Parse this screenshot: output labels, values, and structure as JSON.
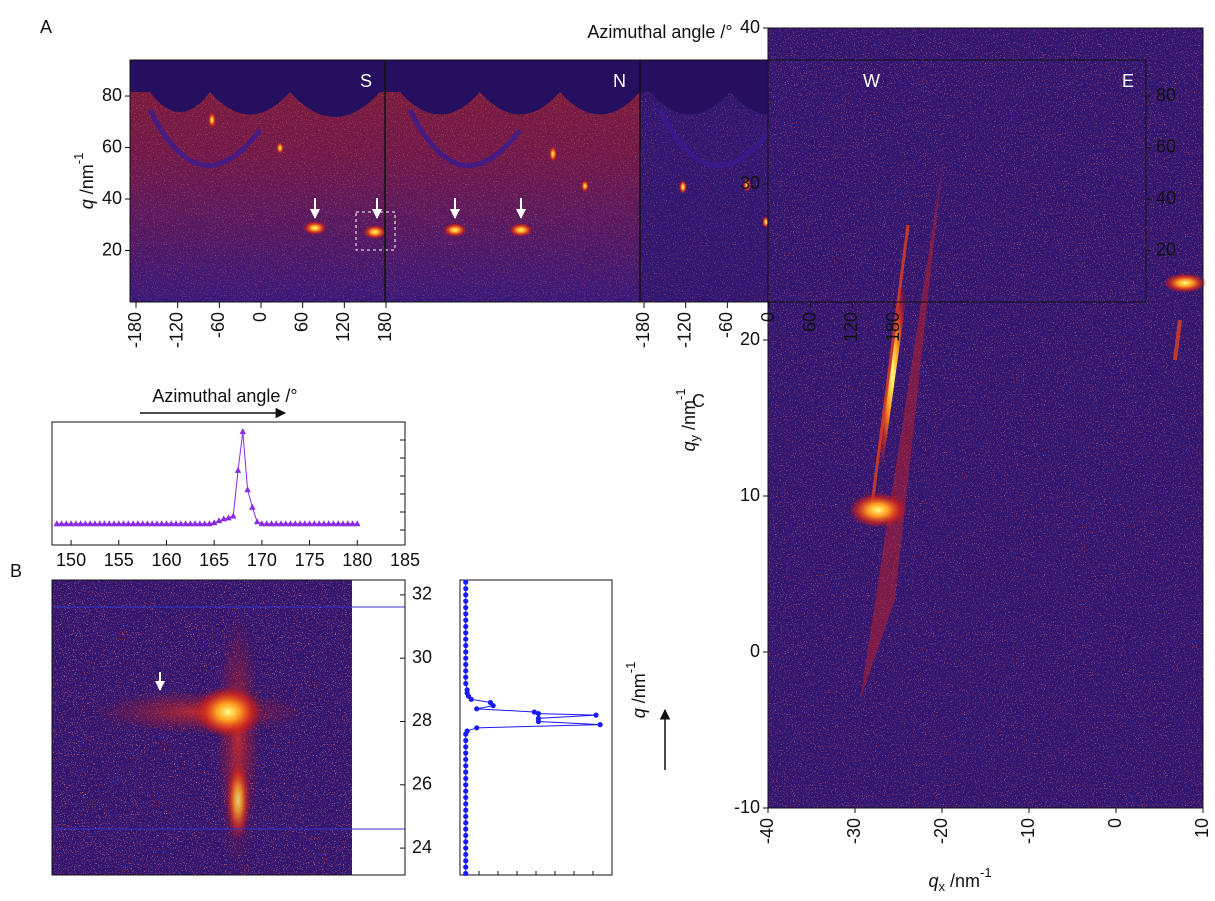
{
  "chart_data": [
    {
      "type": "heatmap",
      "panel": "A",
      "title": "Azimuthal angle /°",
      "ylabel": {
        "symbol": "q",
        "unit": " /nm",
        "power": "-1"
      },
      "ylim": [
        0,
        94
      ],
      "yticks": [
        20,
        40,
        60,
        80
      ],
      "xlim": [
        -180,
        180
      ],
      "segments": [
        {
          "label": "S",
          "xticks": [
            -180,
            -120,
            -60,
            0,
            60,
            120,
            180
          ]
        },
        {
          "label": "N"
        },
        {
          "label": "W",
          "xticks": [
            -180,
            -120,
            -60,
            0,
            60,
            120,
            180
          ]
        },
        {
          "label": "E"
        }
      ]
    },
    {
      "type": "line",
      "panel": "B",
      "title": "Azimuthal angle /°",
      "color": "#8a2be2",
      "xlim": [
        148,
        185
      ],
      "xticks": [
        150,
        155,
        160,
        165,
        170,
        175,
        180,
        185
      ],
      "ylim": [
        -0.17,
        1.1
      ],
      "x": [
        148.5,
        149,
        149.5,
        150,
        150.5,
        151,
        151.5,
        152,
        152.5,
        153,
        153.5,
        154,
        154.5,
        155,
        155.5,
        156,
        156.5,
        157,
        157.5,
        158,
        158.5,
        159,
        159.5,
        160,
        160.5,
        161,
        161.5,
        162,
        162.5,
        163,
        163.5,
        164,
        164.5,
        165,
        165.5,
        166,
        166.5,
        167,
        167.5,
        168,
        168.5,
        169,
        169.5,
        170,
        170.5,
        171,
        171.5,
        172,
        172.5,
        173,
        173.5,
        174,
        174.5,
        175,
        175.5,
        176,
        176.5,
        177,
        177.5,
        178,
        178.5,
        179,
        179.5,
        180
      ],
      "values": [
        0.05,
        0.05,
        0.05,
        0.05,
        0.05,
        0.05,
        0.05,
        0.05,
        0.05,
        0.05,
        0.05,
        0.05,
        0.05,
        0.05,
        0.05,
        0.05,
        0.05,
        0.05,
        0.05,
        0.05,
        0.05,
        0.05,
        0.05,
        0.05,
        0.05,
        0.05,
        0.05,
        0.05,
        0.05,
        0.05,
        0.05,
        0.05,
        0.05,
        0.06,
        0.08,
        0.1,
        0.11,
        0.13,
        0.6,
        1.0,
        0.4,
        0.22,
        0.07,
        0.05,
        0.05,
        0.05,
        0.05,
        0.05,
        0.05,
        0.05,
        0.05,
        0.05,
        0.05,
        0.05,
        0.05,
        0.05,
        0.05,
        0.05,
        0.05,
        0.05,
        0.05,
        0.05,
        0.05,
        0.05
      ]
    },
    {
      "type": "heatmap",
      "xlim": [
        148,
        185
      ],
      "ylim": [
        23.15,
        32.47
      ],
      "yticks": [
        24,
        26,
        28,
        30,
        32
      ]
    },
    {
      "type": "line",
      "orientation": "vertical",
      "color": "#1a1aff",
      "ylabel": {
        "symbol": "q",
        "unit": " /nm",
        "power": "-1"
      },
      "ylim": [
        23.15,
        32.47
      ],
      "xlim": [
        0,
        1.05
      ],
      "y": [
        23.2,
        23.4,
        23.6,
        23.8,
        24.0,
        24.2,
        24.4,
        24.6,
        24.8,
        25.0,
        25.2,
        25.4,
        25.6,
        25.8,
        26.0,
        26.2,
        26.4,
        26.6,
        26.8,
        27.0,
        27.2,
        27.4,
        27.6,
        27.7,
        27.8,
        27.9,
        28.0,
        28.1,
        28.2,
        28.25,
        28.3,
        28.4,
        28.5,
        28.6,
        28.7,
        28.8,
        28.9,
        29.0,
        29.2,
        29.4,
        29.6,
        29.8,
        30.0,
        30.2,
        30.4,
        30.6,
        30.8,
        31.0,
        31.2,
        31.4,
        31.6,
        31.8,
        32.0,
        32.2,
        32.4
      ],
      "values": [
        0.02,
        0.02,
        0.02,
        0.02,
        0.02,
        0.02,
        0.02,
        0.02,
        0.02,
        0.02,
        0.02,
        0.02,
        0.02,
        0.02,
        0.02,
        0.02,
        0.02,
        0.02,
        0.02,
        0.02,
        0.02,
        0.02,
        0.02,
        0.03,
        0.1,
        1.0,
        0.55,
        0.55,
        0.97,
        0.55,
        0.52,
        0.1,
        0.22,
        0.2,
        0.06,
        0.04,
        0.03,
        0.03,
        0.02,
        0.02,
        0.02,
        0.02,
        0.02,
        0.02,
        0.02,
        0.02,
        0.02,
        0.02,
        0.02,
        0.02,
        0.02,
        0.02,
        0.02,
        0.02,
        0.02
      ]
    },
    {
      "type": "heatmap",
      "panel": "C",
      "xlim": [
        -40,
        10
      ],
      "xticks": [
        -40,
        -30,
        -20,
        -10,
        0,
        10
      ],
      "ylim": [
        -10,
        40
      ],
      "yticks": [
        -10,
        0,
        10,
        20,
        30,
        40
      ],
      "xlabel": {
        "symbol": "q",
        "sub": "x",
        "unit": " /nm",
        "power": "-1"
      },
      "ylabel": {
        "symbol": "q",
        "sub": "y",
        "unit": " /nm",
        "power": "-1"
      }
    }
  ]
}
